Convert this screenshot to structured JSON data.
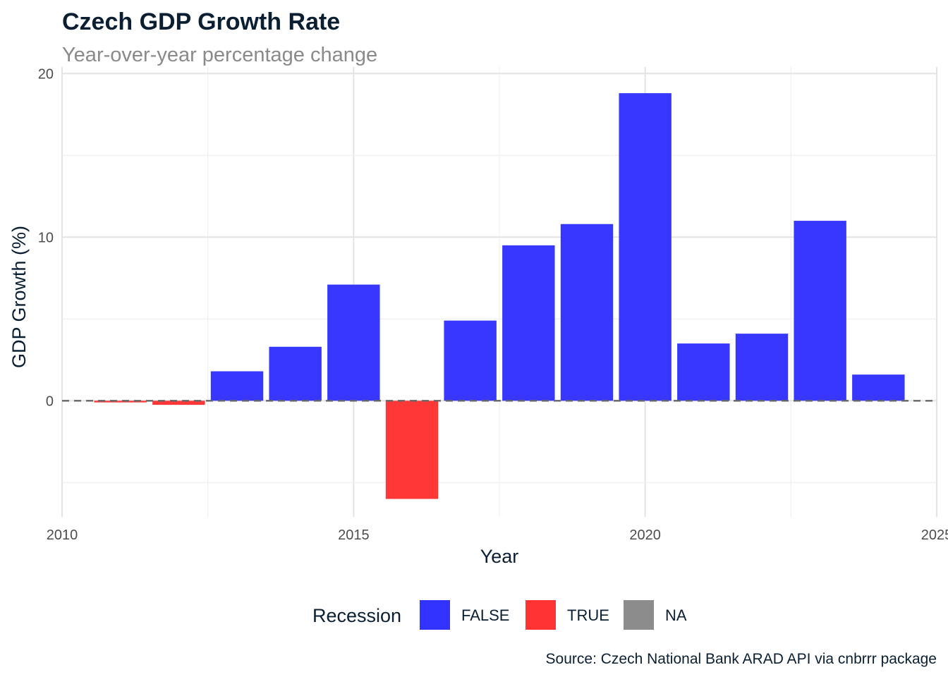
{
  "chart_data": {
    "type": "bar",
    "title": "Czech GDP Growth Rate",
    "subtitle": "Year-over-year percentage change",
    "xlabel": "Year",
    "ylabel": "GDP Growth (%)",
    "caption": "Source: Czech National Bank ARAD API via cnbrrr package",
    "xlim": [
      2010,
      2025
    ],
    "ylim": [
      -7.1,
      20.4
    ],
    "x_ticks": [
      "2010",
      "2015",
      "2020",
      "2025"
    ],
    "y_ticks": [
      "0",
      "10",
      "20"
    ],
    "grid": true,
    "reference_line": {
      "y": 0,
      "style": "dashed"
    },
    "legend": {
      "title": "Recession",
      "position": "bottom",
      "entries": [
        {
          "label": "FALSE",
          "color": "#3333ff"
        },
        {
          "label": "TRUE",
          "color": "#ff3333"
        },
        {
          "label": "NA",
          "color": "#8c8c8c"
        }
      ]
    },
    "bars": [
      {
        "x": 2011,
        "value": -0.1,
        "recession": "TRUE"
      },
      {
        "x": 2012,
        "value": -0.25,
        "recession": "TRUE"
      },
      {
        "x": 2013,
        "value": 1.8,
        "recession": "FALSE"
      },
      {
        "x": 2014,
        "value": 3.3,
        "recession": "FALSE"
      },
      {
        "x": 2015,
        "value": 7.1,
        "recession": "FALSE"
      },
      {
        "x": 2016,
        "value": -6.0,
        "recession": "TRUE"
      },
      {
        "x": 2017,
        "value": 4.9,
        "recession": "FALSE"
      },
      {
        "x": 2018,
        "value": 9.5,
        "recession": "FALSE"
      },
      {
        "x": 2019,
        "value": 10.8,
        "recession": "FALSE"
      },
      {
        "x": 2020,
        "value": 18.8,
        "recession": "FALSE"
      },
      {
        "x": 2021,
        "value": 3.5,
        "recession": "FALSE"
      },
      {
        "x": 2022,
        "value": 4.1,
        "recession": "FALSE"
      },
      {
        "x": 2023,
        "value": 11.0,
        "recession": "FALSE"
      },
      {
        "x": 2024,
        "value": 1.6,
        "recession": "FALSE"
      }
    ]
  }
}
